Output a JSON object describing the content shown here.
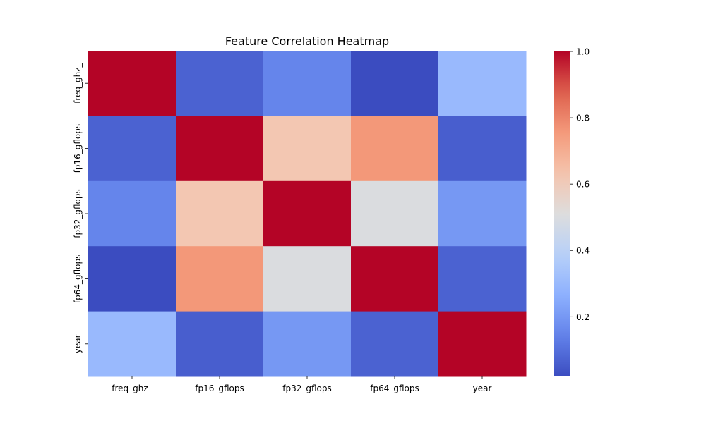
{
  "chart_data": {
    "type": "heatmap",
    "title": "Feature Correlation Heatmap",
    "x_categories": [
      "freq_ghz_",
      "fp16_gflops",
      "fp32_gflops",
      "fp64_gflops",
      "year"
    ],
    "y_categories": [
      "freq_ghz_",
      "fp16_gflops",
      "fp32_gflops",
      "fp64_gflops",
      "year"
    ],
    "values": [
      [
        1.0,
        0.07,
        0.15,
        0.02,
        0.3
      ],
      [
        0.07,
        1.0,
        0.62,
        0.76,
        0.06
      ],
      [
        0.15,
        0.62,
        1.0,
        0.5,
        0.2
      ],
      [
        0.02,
        0.76,
        0.5,
        1.0,
        0.07
      ],
      [
        0.3,
        0.06,
        0.2,
        0.07,
        1.0
      ]
    ],
    "colormap": "coolwarm",
    "colorbar": {
      "min": 0.02,
      "max": 1.0,
      "ticks": [
        0.2,
        0.4,
        0.6,
        0.8,
        1.0
      ],
      "tick_labels": [
        "0.2",
        "0.4",
        "0.6",
        "0.8",
        "1.0"
      ]
    },
    "colors": {
      "low": "#3b4cc0",
      "mid": "#dddddd",
      "high": "#b40426"
    }
  }
}
